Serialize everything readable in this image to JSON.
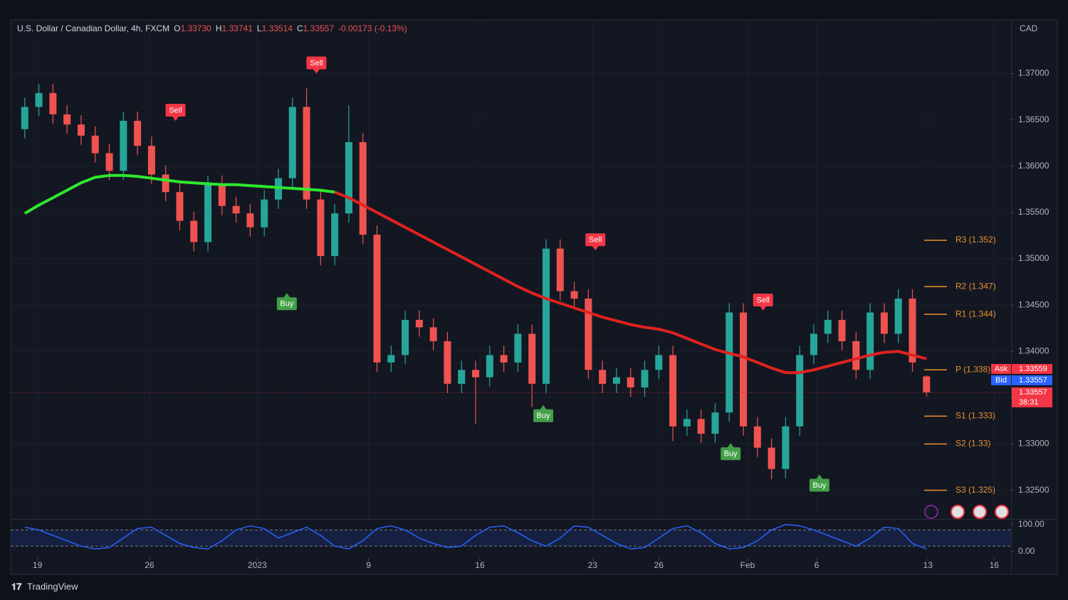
{
  "chart_data": {
    "type": "candlestick",
    "title": "U.S. Dollar / Canadian Dollar, 4h, FXCM",
    "ohlc_header": [
      {
        "key": "O",
        "text": "1.33730"
      },
      {
        "key": "H",
        "text": "1.33741"
      },
      {
        "key": "L",
        "text": "1.33514"
      },
      {
        "key": "C",
        "text": "1.33557"
      }
    ],
    "change": "-0.00173 (-0.13%)",
    "currency": "CAD",
    "up_color": "#26a69a",
    "down_color": "#ef5350",
    "grid": true,
    "xlim": [
      -1,
      70
    ],
    "xticks": [
      {
        "value": 0.9,
        "label": "19"
      },
      {
        "value": 8.85,
        "label": "26"
      },
      {
        "value": 16.5,
        "label": "2023"
      },
      {
        "value": 24.4,
        "label": "9"
      },
      {
        "value": 32.3,
        "label": "16"
      },
      {
        "value": 40.3,
        "label": "23"
      },
      {
        "value": 45.0,
        "label": "26"
      },
      {
        "value": 51.3,
        "label": "Feb"
      },
      {
        "value": 56.2,
        "label": "6"
      },
      {
        "value": 64.1,
        "label": "13"
      },
      {
        "value": 68.8,
        "label": "16"
      }
    ],
    "ylim": [
      1.3219,
      1.3758
    ],
    "yticks": [
      {
        "value": 1.325,
        "label": "1.32500"
      },
      {
        "value": 1.33,
        "label": "1.33000"
      },
      {
        "value": 1.335,
        "label": "1.33500"
      },
      {
        "value": 1.34,
        "label": "1.34000"
      },
      {
        "value": 1.345,
        "label": "1.34500"
      },
      {
        "value": 1.35,
        "label": "1.35000"
      },
      {
        "value": 1.355,
        "label": "1.35500"
      },
      {
        "value": 1.36,
        "label": "1.36000"
      },
      {
        "value": 1.365,
        "label": "1.36500"
      },
      {
        "value": 1.37,
        "label": "1.37000"
      }
    ],
    "open": [
      1.364,
      1.3664,
      1.3679,
      1.3656,
      1.3645,
      1.3633,
      1.3614,
      1.3595,
      1.3649,
      1.3622,
      1.3591,
      1.3572,
      1.3541,
      1.3518,
      1.358,
      1.3557,
      1.3549,
      1.3534,
      1.3564,
      1.3587,
      1.3664,
      1.3564,
      1.3503,
      1.3549,
      1.3626,
      1.3526,
      1.3388,
      1.3396,
      1.3434,
      1.3426,
      1.3411,
      1.3365,
      1.338,
      1.3372,
      1.3396,
      1.3388,
      1.3419,
      1.3365,
      1.3511,
      1.3465,
      1.3457,
      1.338,
      1.3365,
      1.3372,
      1.3361,
      1.338,
      1.3396,
      1.3319,
      1.3327,
      1.3311,
      1.3334,
      1.3442,
      1.3319,
      1.3296,
      1.3273,
      1.3319,
      1.3396,
      1.3419,
      1.3434,
      1.3411,
      1.338,
      1.3442,
      1.3419,
      1.3457,
      1.3373
    ],
    "high": [
      1.3674,
      1.3689,
      1.3689,
      1.3666,
      1.3655,
      1.3643,
      1.3624,
      1.3659,
      1.3659,
      1.3632,
      1.3601,
      1.3582,
      1.3551,
      1.359,
      1.359,
      1.3567,
      1.3559,
      1.3574,
      1.3597,
      1.3674,
      1.3684,
      1.3574,
      1.3559,
      1.3666,
      1.3636,
      1.3536,
      1.3406,
      1.3444,
      1.3444,
      1.3436,
      1.3421,
      1.339,
      1.339,
      1.3406,
      1.3406,
      1.3429,
      1.3429,
      1.3521,
      1.3521,
      1.3475,
      1.3467,
      1.339,
      1.3382,
      1.3382,
      1.339,
      1.3406,
      1.3406,
      1.3337,
      1.3337,
      1.3344,
      1.3452,
      1.3452,
      1.3329,
      1.3306,
      1.3329,
      1.3406,
      1.3429,
      1.3444,
      1.3444,
      1.3421,
      1.3452,
      1.3452,
      1.3467,
      1.3467,
      1.33741
    ],
    "low": [
      1.363,
      1.3654,
      1.3646,
      1.3635,
      1.3623,
      1.3604,
      1.3585,
      1.3585,
      1.3612,
      1.3581,
      1.3562,
      1.3531,
      1.3508,
      1.3508,
      1.3547,
      1.3539,
      1.3524,
      1.3524,
      1.3554,
      1.3577,
      1.3554,
      1.3493,
      1.3493,
      1.3539,
      1.3516,
      1.3378,
      1.3378,
      1.3386,
      1.3416,
      1.3401,
      1.3355,
      1.3355,
      1.3322,
      1.3362,
      1.3378,
      1.3378,
      1.334,
      1.3355,
      1.3455,
      1.3447,
      1.337,
      1.3355,
      1.3355,
      1.3351,
      1.3351,
      1.337,
      1.3303,
      1.3309,
      1.3301,
      1.3301,
      1.3324,
      1.3309,
      1.3286,
      1.3262,
      1.3263,
      1.3309,
      1.3386,
      1.3409,
      1.3401,
      1.337,
      1.337,
      1.3409,
      1.3409,
      1.3378,
      1.33514
    ],
    "close": [
      1.3664,
      1.3679,
      1.3656,
      1.3645,
      1.3633,
      1.3614,
      1.3595,
      1.3649,
      1.3622,
      1.3591,
      1.3572,
      1.3541,
      1.3518,
      1.358,
      1.3557,
      1.3549,
      1.3534,
      1.3564,
      1.3587,
      1.3664,
      1.3564,
      1.3503,
      1.3549,
      1.3626,
      1.3526,
      1.3388,
      1.3396,
      1.3434,
      1.3426,
      1.3411,
      1.3365,
      1.338,
      1.3372,
      1.3396,
      1.3388,
      1.3419,
      1.3365,
      1.3511,
      1.3465,
      1.3457,
      1.338,
      1.3365,
      1.3372,
      1.3361,
      1.338,
      1.3396,
      1.3319,
      1.3327,
      1.3311,
      1.3334,
      1.3442,
      1.3319,
      1.3296,
      1.3273,
      1.3319,
      1.3396,
      1.3419,
      1.3434,
      1.3411,
      1.338,
      1.3442,
      1.3419,
      1.3457,
      1.3388,
      1.33557
    ],
    "lines": [
      {
        "color": "#2ee82e",
        "values": [
          1.3549,
          1.3558,
          1.3566,
          1.3574,
          1.3582,
          1.3588,
          1.359,
          1.359,
          1.3589,
          1.3587,
          1.3585,
          1.3583,
          1.3582,
          1.3581,
          1.358,
          1.358,
          1.3579,
          1.3578,
          1.3577,
          1.3576,
          1.3575,
          1.3574,
          1.3572,
          null,
          null,
          null,
          null,
          null,
          null,
          null,
          null,
          null,
          null,
          null,
          null,
          null,
          null,
          null,
          null,
          null,
          null,
          null,
          null,
          null,
          null,
          null,
          null,
          null,
          null,
          null,
          null,
          null,
          null,
          null,
          null,
          null,
          null,
          null,
          null,
          null,
          null,
          null,
          null,
          null,
          null
        ]
      },
      {
        "color": "#e0221f",
        "values": [
          null,
          null,
          null,
          null,
          null,
          null,
          null,
          null,
          null,
          null,
          null,
          null,
          null,
          null,
          null,
          null,
          null,
          null,
          null,
          null,
          null,
          null,
          1.3572,
          1.3566,
          1.3558,
          1.355,
          1.3542,
          1.3534,
          1.3526,
          1.3518,
          1.351,
          1.3502,
          1.3494,
          1.3486,
          1.3478,
          1.347,
          1.3463,
          1.3457,
          1.3452,
          1.3447,
          1.3442,
          1.3437,
          1.3433,
          1.3429,
          1.3426,
          1.3424,
          1.342,
          1.3414,
          1.3408,
          1.3402,
          1.3398,
          1.3394,
          1.3388,
          1.3382,
          1.3377,
          1.3377,
          1.338,
          1.3384,
          1.3388,
          1.3392,
          1.3396,
          1.3399,
          1.34,
          1.3396,
          1.3392
        ]
      }
    ],
    "signals": [
      {
        "label": "Sell",
        "x": 10.7,
        "y": 1.3649,
        "color": "#f23645"
      },
      {
        "label": "Sell",
        "x": 20.7,
        "y": 1.37,
        "color": "#f23645"
      },
      {
        "label": "Buy",
        "x": 18.6,
        "y": 1.3463,
        "color": "#43a047"
      },
      {
        "label": "Sell",
        "x": 40.5,
        "y": 1.3509,
        "color": "#f23645"
      },
      {
        "label": "Buy",
        "x": 36.8,
        "y": 1.3342,
        "color": "#43a047"
      },
      {
        "label": "Sell",
        "x": 52.4,
        "y": 1.3444,
        "color": "#f23645"
      },
      {
        "label": "Buy",
        "x": 50.1,
        "y": 1.3301,
        "color": "#43a047"
      },
      {
        "label": "Buy",
        "x": 56.4,
        "y": 1.3267,
        "color": "#43a047"
      }
    ],
    "pivots": [
      {
        "label": "R3 (1.352)",
        "value": 1.352
      },
      {
        "label": "R2 (1.347)",
        "value": 1.347
      },
      {
        "label": "R1 (1.344)",
        "value": 1.344
      },
      {
        "label": "P (1.338)",
        "value": 1.338
      },
      {
        "label": "S1 (1.333)",
        "value": 1.333
      },
      {
        "label": "S2 (1.33)",
        "value": 1.33
      },
      {
        "label": "S3 (1.325)",
        "value": 1.325
      }
    ],
    "pivot_color": "#e8912d",
    "quotes": [
      {
        "label": "Ask",
        "value": 1.33559,
        "color": "#f23645"
      },
      {
        "label": "Bid",
        "value": 1.33557,
        "color": "#2962ff"
      }
    ],
    "last": {
      "value": 1.33557,
      "countdown": "38:31",
      "color": "#f23645"
    },
    "oscillator": {
      "color": "#2962ff",
      "ylim": [
        -24,
        118
      ],
      "yticks": [
        {
          "value": 100,
          "label": "100.00"
        },
        {
          "value": 0,
          "label": "0.00"
        }
      ],
      "levels": [
        80,
        20
      ],
      "values": [
        90,
        80,
        60,
        40,
        20,
        10,
        15,
        50,
        85,
        90,
        60,
        30,
        15,
        10,
        40,
        80,
        95,
        85,
        50,
        70,
        90,
        60,
        20,
        10,
        40,
        85,
        95,
        80,
        50,
        30,
        15,
        20,
        60,
        90,
        95,
        70,
        40,
        20,
        50,
        95,
        90,
        60,
        30,
        10,
        15,
        50,
        85,
        95,
        70,
        30,
        10,
        15,
        40,
        80,
        100,
        95,
        80,
        60,
        40,
        20,
        50,
        90,
        85,
        30,
        10
      ]
    }
  },
  "brand": "TradingView"
}
